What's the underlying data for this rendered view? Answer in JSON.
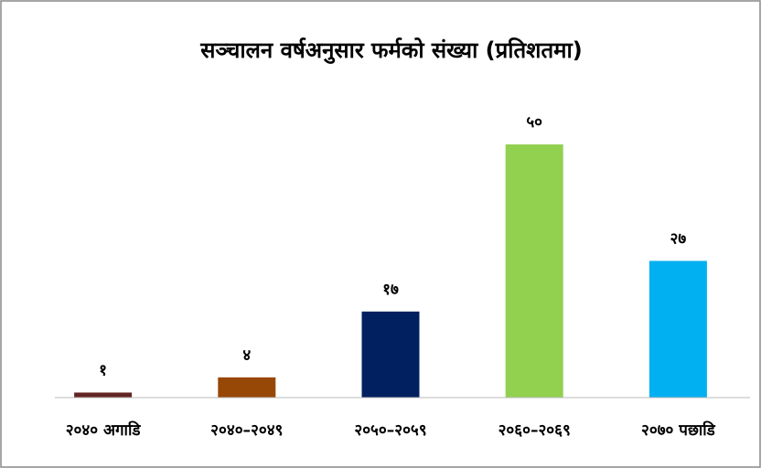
{
  "chart_data": {
    "type": "bar",
    "title": "सञ्चालन वर्षअनुसार फर्मको संख्या (प्रतिशतमा)",
    "categories": [
      "२०४० अगाडि",
      "२०४०–२०४९",
      "२०५०–२०५९",
      "२०६०–२०६९",
      "२०७० पछाडि"
    ],
    "values": [
      1,
      4,
      17,
      50,
      27
    ],
    "value_labels": [
      "१",
      "४",
      "१७",
      "५०",
      "२७"
    ],
    "colors": [
      "#632523",
      "#984806",
      "#002060",
      "#92d050",
      "#00b0f0"
    ],
    "ylim": [
      0,
      50
    ]
  }
}
